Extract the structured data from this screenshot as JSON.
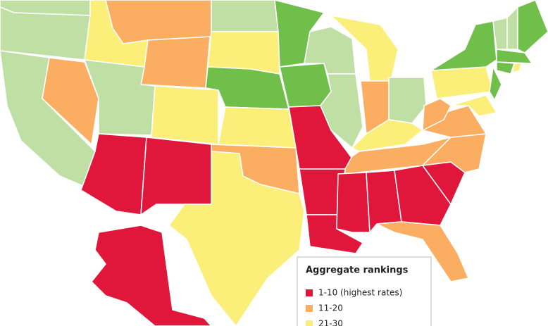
{
  "legend": {
    "title": "Aggregate rankings",
    "items": [
      {
        "label": "1-10 (highest rates)",
        "color": "#e0173a"
      },
      {
        "label": "11-20",
        "color": "#fbae62"
      },
      {
        "label": "21-30",
        "color": "#fbef7a"
      }
    ]
  }
}
